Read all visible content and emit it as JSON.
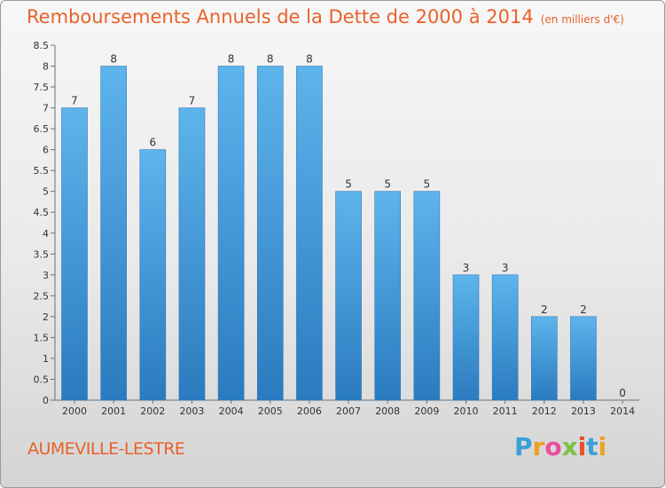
{
  "chart_data": {
    "type": "bar",
    "title": "Remboursements Annuels de la Dette de 2000 à 2014",
    "unit_note": "(en milliers d'€)",
    "categories": [
      "2000",
      "2001",
      "2002",
      "2003",
      "2004",
      "2005",
      "2006",
      "2007",
      "2008",
      "2009",
      "2010",
      "2011",
      "2012",
      "2013",
      "2014"
    ],
    "values": [
      7,
      8,
      6,
      7,
      8,
      8,
      8,
      5,
      5,
      5,
      3,
      3,
      2,
      2,
      0
    ],
    "data_labels": [
      "7",
      "8",
      "6",
      "7",
      "8",
      "8",
      "8",
      "5",
      "5",
      "5",
      "3",
      "3",
      "2",
      "2",
      "0"
    ],
    "ylim": [
      0,
      8.5
    ],
    "yticks": [
      "0",
      "0.5",
      "1",
      "1.5",
      "2",
      "2.5",
      "3",
      "3.5",
      "4",
      "4.5",
      "5",
      "5.5",
      "6",
      "6.5",
      "7",
      "7.5",
      "8",
      "8.5"
    ],
    "grid": false,
    "xlabel": "",
    "ylabel": "",
    "colors": {
      "bar_top": "#5eb4ec",
      "bar_bottom": "#2a7bbf",
      "title": "#e8622a"
    }
  },
  "footer": {
    "commune": "AUMEVILLE-LESTRE",
    "logo_letters": [
      "P",
      "r",
      "o",
      "x",
      "i",
      "t",
      "i"
    ],
    "logo_colors": [
      "#3aa0d8",
      "#f0a020",
      "#ea4e9c",
      "#7cc242",
      "#ea4e2a",
      "#3aa0d8",
      "#f0a020"
    ]
  }
}
